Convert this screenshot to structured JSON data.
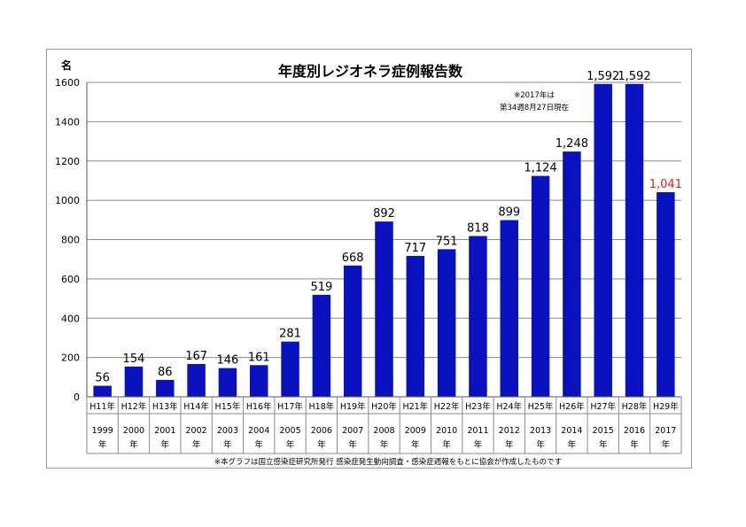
{
  "chart_data": {
    "type": "bar",
    "title": "年度別レジオネラ症例報告数",
    "ylabel": "名",
    "ylim": [
      0,
      1600
    ],
    "yticks": [
      "0",
      "200",
      "400",
      "600",
      "800",
      "1000",
      "1200",
      "1400",
      "1600"
    ],
    "grid": true,
    "bar_color": "#0a12c0",
    "highlight_color": "#e2231a",
    "categories_era": [
      "H11年",
      "H12年",
      "H13年",
      "H14年",
      "H15年",
      "H16年",
      "H17年",
      "H18年",
      "H19年",
      "H20年",
      "H21年",
      "H22年",
      "H23年",
      "H24年",
      "H25年",
      "H26年",
      "H27年",
      "H28年",
      "H29年"
    ],
    "categories_year": [
      "1999",
      "2000",
      "2001",
      "2002",
      "2003",
      "2004",
      "2005",
      "2006",
      "2007",
      "2008",
      "2009",
      "2010",
      "2011",
      "2012",
      "2013",
      "2014",
      "2015",
      "2016",
      "2017"
    ],
    "year_suffix": "年",
    "values": [
      56,
      154,
      86,
      167,
      146,
      161,
      281,
      519,
      668,
      892,
      717,
      751,
      818,
      899,
      1124,
      1248,
      1592,
      1592,
      1041
    ],
    "labels": [
      "56",
      "154",
      "86",
      "167",
      "146",
      "161",
      "281",
      "519",
      "668",
      "892",
      "717",
      "751",
      "818",
      "899",
      "1,124",
      "1,248",
      "1,592",
      "1,592",
      "1,041"
    ],
    "highlight_index": 18,
    "annotation_line1": "※2017年は",
    "annotation_line2": "第34週8月27日現在",
    "source_note": "※本グラフは国立感染症研究所発行 感染症発生動向調査・感染症週報をもとに協会が作成したものです"
  }
}
